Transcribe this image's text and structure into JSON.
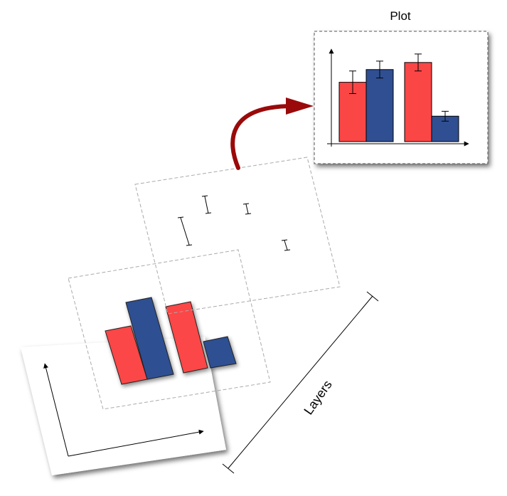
{
  "plot": {
    "title": "Plot",
    "colors": {
      "red": "#fb4646",
      "blue": "#2f4f92",
      "arrow": "#9a0a0a"
    },
    "chart_data": {
      "type": "bar",
      "categories": [
        "",
        ""
      ],
      "series": [
        {
          "values": [
            4.2,
            5.6
          ],
          "errors": [
            0.8,
            0.6
          ]
        },
        {
          "values": [
            5.1,
            1.8
          ],
          "errors": [
            0.6,
            0.35
          ]
        }
      ],
      "ylim": [
        0,
        6.8
      ],
      "xlabel": "",
      "ylabel": "",
      "grid": false
    }
  },
  "layers": {
    "label": "Layers"
  }
}
